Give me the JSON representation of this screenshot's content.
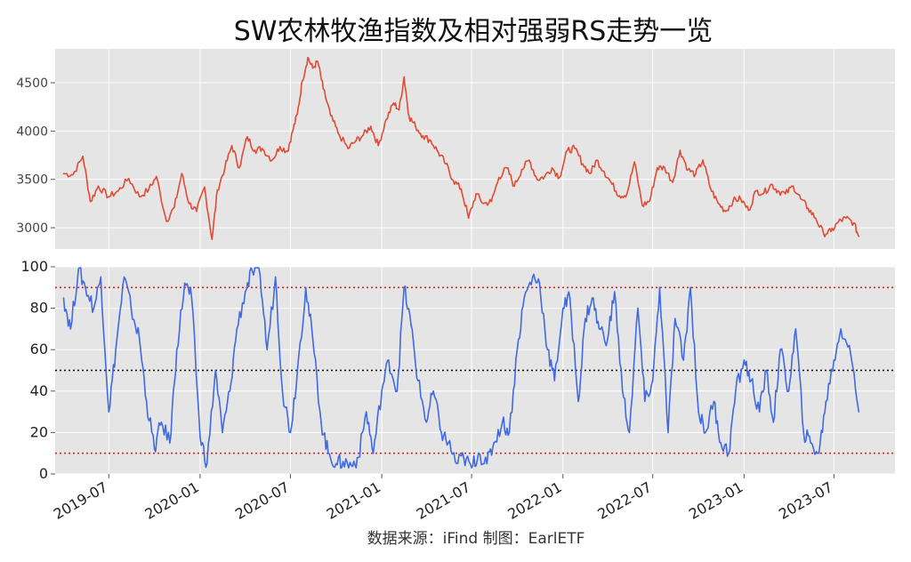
{
  "title": "SW农林牧渔指数及相对强弱RS走势一览",
  "source": "数据来源：iFind 制图：EarlETF",
  "chart_data": [
    {
      "type": "line",
      "name": "index",
      "color": "#E24A33",
      "ylim": [
        2780,
        4850
      ],
      "yticks": [
        3000,
        3500,
        4000,
        4500
      ],
      "xlim": [
        "2019-03-15",
        "2023-11-01"
      ],
      "x": [
        "2019-04-01",
        "2019-04-20",
        "2019-05-10",
        "2019-05-25",
        "2019-06-10",
        "2019-07-01",
        "2019-07-20",
        "2019-08-10",
        "2019-09-01",
        "2019-09-20",
        "2019-10-05",
        "2019-10-25",
        "2019-11-10",
        "2019-11-25",
        "2019-12-10",
        "2019-12-25",
        "2020-01-10",
        "2020-01-25",
        "2020-02-05",
        "2020-02-20",
        "2020-03-05",
        "2020-03-20",
        "2020-04-05",
        "2020-04-20",
        "2020-05-05",
        "2020-05-25",
        "2020-06-10",
        "2020-06-25",
        "2020-07-05",
        "2020-07-15",
        "2020-07-25",
        "2020-08-05",
        "2020-08-15",
        "2020-08-25",
        "2020-09-05",
        "2020-09-20",
        "2020-10-05",
        "2020-10-25",
        "2020-11-10",
        "2020-11-25",
        "2020-12-10",
        "2020-12-25",
        "2021-01-10",
        "2021-01-25",
        "2021-02-05",
        "2021-02-15",
        "2021-02-25",
        "2021-03-10",
        "2021-03-25",
        "2021-04-10",
        "2021-04-25",
        "2021-05-10",
        "2021-05-25",
        "2021-06-10",
        "2021-06-25",
        "2021-07-10",
        "2021-07-25",
        "2021-08-10",
        "2021-08-25",
        "2021-09-10",
        "2021-09-25",
        "2021-10-10",
        "2021-10-25",
        "2021-11-10",
        "2021-11-25",
        "2021-12-10",
        "2021-12-25",
        "2022-01-10",
        "2022-01-25",
        "2022-02-10",
        "2022-02-25",
        "2022-03-10",
        "2022-03-25",
        "2022-04-10",
        "2022-04-25",
        "2022-05-10",
        "2022-05-25",
        "2022-06-10",
        "2022-06-25",
        "2022-07-10",
        "2022-07-25",
        "2022-08-10",
        "2022-08-25",
        "2022-09-10",
        "2022-09-25",
        "2022-10-10",
        "2022-10-25",
        "2022-11-10",
        "2022-11-25",
        "2022-12-10",
        "2022-12-25",
        "2023-01-10",
        "2023-01-25",
        "2023-02-10",
        "2023-02-25",
        "2023-03-10",
        "2023-03-25",
        "2023-04-10",
        "2023-04-25",
        "2023-05-10",
        "2023-05-25",
        "2023-06-10",
        "2023-06-25",
        "2023-07-10",
        "2023-07-25",
        "2023-08-10",
        "2023-08-20"
      ],
      "values": [
        3560,
        3550,
        3740,
        3270,
        3430,
        3320,
        3380,
        3510,
        3320,
        3400,
        3530,
        3070,
        3210,
        3560,
        3250,
        3170,
        3420,
        2880,
        3390,
        3620,
        3850,
        3620,
        3940,
        3800,
        3820,
        3700,
        3840,
        3790,
        3990,
        4180,
        4520,
        4760,
        4650,
        4720,
        4440,
        4160,
        3980,
        3820,
        3900,
        3960,
        4050,
        3850,
        4120,
        4290,
        4220,
        4560,
        4150,
        4050,
        3950,
        3900,
        3780,
        3660,
        3490,
        3400,
        3100,
        3350,
        3250,
        3270,
        3520,
        3620,
        3430,
        3600,
        3700,
        3500,
        3530,
        3620,
        3520,
        3800,
        3820,
        3660,
        3560,
        3700,
        3580,
        3450,
        3330,
        3350,
        3680,
        3230,
        3280,
        3620,
        3620,
        3470,
        3800,
        3600,
        3550,
        3700,
        3410,
        3250,
        3170,
        3280,
        3300,
        3180,
        3380,
        3360,
        3450,
        3380,
        3350,
        3430,
        3300,
        3200,
        3100,
        2940,
        2960,
        3060,
        3100,
        3050,
        2910
      ]
    },
    {
      "type": "line",
      "name": "RS",
      "color": "#4169E1",
      "ylim": [
        0,
        100
      ],
      "yticks": [
        0,
        20,
        40,
        60,
        80,
        100
      ],
      "hlines": [
        {
          "y": 90,
          "color": "#D62728"
        },
        {
          "y": 50,
          "color": "#000000"
        },
        {
          "y": 10,
          "color": "#D62728"
        }
      ],
      "xlim": [
        "2019-03-15",
        "2023-11-01"
      ],
      "xticks": [
        "2019-07",
        "2020-01",
        "2020-07",
        "2021-01",
        "2021-07",
        "2022-01",
        "2022-07",
        "2023-01",
        "2023-07"
      ],
      "x": [
        "2019-04-01",
        "2019-04-15",
        "2019-05-01",
        "2019-05-15",
        "2019-06-01",
        "2019-06-15",
        "2019-07-01",
        "2019-07-15",
        "2019-08-01",
        "2019-08-15",
        "2019-09-01",
        "2019-09-15",
        "2019-10-01",
        "2019-10-15",
        "2019-11-01",
        "2019-11-15",
        "2019-12-01",
        "2019-12-15",
        "2020-01-01",
        "2020-01-15",
        "2020-02-01",
        "2020-02-15",
        "2020-03-01",
        "2020-03-15",
        "2020-04-01",
        "2020-04-15",
        "2020-05-01",
        "2020-05-15",
        "2020-06-01",
        "2020-06-15",
        "2020-07-01",
        "2020-07-15",
        "2020-08-01",
        "2020-08-15",
        "2020-09-01",
        "2020-09-15",
        "2020-10-01",
        "2020-10-15",
        "2020-11-01",
        "2020-11-15",
        "2020-12-01",
        "2020-12-15",
        "2021-01-01",
        "2021-01-15",
        "2021-02-01",
        "2021-02-15",
        "2021-03-01",
        "2021-03-15",
        "2021-04-01",
        "2021-04-15",
        "2021-05-01",
        "2021-05-15",
        "2021-06-01",
        "2021-06-15",
        "2021-07-01",
        "2021-07-15",
        "2021-08-01",
        "2021-08-15",
        "2021-09-01",
        "2021-09-15",
        "2021-10-01",
        "2021-10-15",
        "2021-11-01",
        "2021-11-15",
        "2021-12-01",
        "2021-12-15",
        "2022-01-01",
        "2022-01-15",
        "2022-02-01",
        "2022-02-15",
        "2022-03-01",
        "2022-03-15",
        "2022-04-01",
        "2022-04-15",
        "2022-05-01",
        "2022-05-15",
        "2022-06-01",
        "2022-06-15",
        "2022-07-01",
        "2022-07-15",
        "2022-08-01",
        "2022-08-15",
        "2022-09-01",
        "2022-09-15",
        "2022-10-01",
        "2022-10-15",
        "2022-11-01",
        "2022-11-15",
        "2022-12-01",
        "2022-12-15",
        "2023-01-01",
        "2023-01-15",
        "2023-02-01",
        "2023-02-15",
        "2023-03-01",
        "2023-03-15",
        "2023-04-01",
        "2023-04-15",
        "2023-05-01",
        "2023-05-15",
        "2023-06-01",
        "2023-06-15",
        "2023-07-01",
        "2023-07-15",
        "2023-08-01",
        "2023-08-20"
      ],
      "values": [
        85,
        70,
        99,
        90,
        80,
        95,
        30,
        60,
        95,
        80,
        65,
        35,
        12,
        25,
        15,
        60,
        92,
        85,
        18,
        5,
        50,
        20,
        40,
        70,
        88,
        98,
        96,
        60,
        95,
        40,
        20,
        50,
        90,
        65,
        25,
        10,
        5,
        6,
        4,
        8,
        30,
        10,
        40,
        55,
        40,
        90,
        72,
        45,
        25,
        40,
        20,
        15,
        5,
        8,
        3,
        10,
        5,
        15,
        25,
        20,
        60,
        85,
        95,
        92,
        60,
        45,
        80,
        85,
        35,
        75,
        85,
        70,
        65,
        88,
        40,
        20,
        80,
        35,
        45,
        90,
        20,
        75,
        55,
        90,
        30,
        20,
        35,
        15,
        10,
        40,
        55,
        45,
        30,
        50,
        25,
        60,
        40,
        70,
        20,
        15,
        10,
        35,
        55,
        70,
        62,
        30
      ]
    }
  ]
}
